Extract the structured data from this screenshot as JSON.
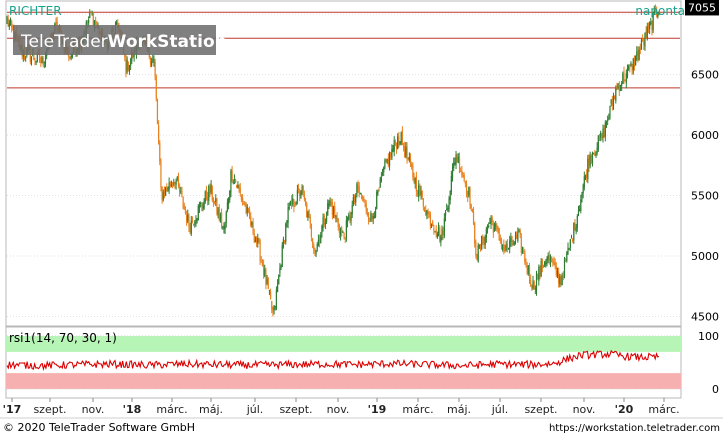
{
  "header": {
    "symbol": "RICHTER",
    "interval": "naponta",
    "watermark_trade": "TeleTrader",
    "watermark_ws": "WorkStation",
    "last_price": "7055"
  },
  "footer": {
    "copyright": "© 2020 TeleTrader Software GmbH",
    "url": "https://workstation.teletrader.com"
  },
  "colors": {
    "up": "#2e7d32",
    "down": "#e8821f",
    "hline": "#c0392b",
    "rsi": "#dd0000",
    "rsi_over": "#b6f5b6",
    "rsi_under": "#f7b0b0"
  },
  "chart_data": [
    {
      "type": "candlestick",
      "y_ticks": [
        4500,
        5000,
        5500,
        6000,
        6500,
        7000
      ],
      "ylim": [
        4430,
        7100
      ],
      "grid": true,
      "horizontal_lines": [
        7015,
        6800,
        6390
      ],
      "last_value": 7055,
      "x_labels": [
        "'17",
        "szept.",
        "nov.",
        "'18",
        "márc.",
        "máj.",
        "júl.",
        "szept.",
        "nov.",
        "'19",
        "márc.",
        "máj.",
        "júl.",
        "szept.",
        "nov.",
        "'20",
        "márc."
      ],
      "price_path": [
        [
          0,
          6950
        ],
        [
          2,
          6700
        ],
        [
          5,
          6600
        ],
        [
          7,
          6900
        ],
        [
          9,
          6650
        ],
        [
          11,
          6850
        ],
        [
          12,
          7000
        ],
        [
          14,
          6750
        ],
        [
          16,
          6900
        ],
        [
          17,
          6550
        ],
        [
          19,
          6800
        ],
        [
          21,
          6600
        ],
        [
          22,
          5500
        ],
        [
          24,
          5650
        ],
        [
          26,
          5250
        ],
        [
          29,
          5550
        ],
        [
          31,
          5200
        ],
        [
          32,
          5700
        ],
        [
          34,
          5400
        ],
        [
          36,
          5050
        ],
        [
          38,
          4500
        ],
        [
          40,
          5350
        ],
        [
          42,
          5550
        ],
        [
          44,
          5050
        ],
        [
          46,
          5450
        ],
        [
          48,
          5150
        ],
        [
          50,
          5550
        ],
        [
          52,
          5300
        ],
        [
          54,
          5750
        ],
        [
          56,
          6000
        ],
        [
          58,
          5650
        ],
        [
          60,
          5350
        ],
        [
          62,
          5150
        ],
        [
          64,
          5850
        ],
        [
          66,
          5500
        ],
        [
          67,
          5000
        ],
        [
          69,
          5300
        ],
        [
          71,
          5050
        ],
        [
          73,
          5150
        ],
        [
          75,
          4750
        ],
        [
          77,
          5000
        ],
        [
          79,
          4800
        ],
        [
          81,
          5250
        ],
        [
          83,
          5800
        ],
        [
          85,
          6000
        ],
        [
          87,
          6400
        ],
        [
          89,
          6550
        ],
        [
          91,
          6800
        ],
        [
          93,
          7055
        ]
      ]
    },
    {
      "type": "line",
      "title": "rsi1(14, 70, 30, 1)",
      "y_ticks": [
        0,
        100
      ],
      "ylim": [
        -15,
        115
      ],
      "overbought": 70,
      "oversold": 30,
      "rsi_path": [
        [
          0,
          46
        ],
        [
          5,
          44
        ],
        [
          10,
          46
        ],
        [
          15,
          47
        ],
        [
          20,
          45
        ],
        [
          25,
          47
        ],
        [
          30,
          46
        ],
        [
          35,
          45
        ],
        [
          40,
          46
        ],
        [
          45,
          47
        ],
        [
          50,
          46
        ],
        [
          55,
          48
        ],
        [
          60,
          46
        ],
        [
          65,
          44
        ],
        [
          70,
          47
        ],
        [
          75,
          46
        ],
        [
          78,
          48
        ],
        [
          80,
          57
        ],
        [
          82,
          64
        ],
        [
          84,
          65
        ],
        [
          86,
          66
        ],
        [
          88,
          62
        ],
        [
          90,
          60
        ],
        [
          93,
          60
        ]
      ]
    }
  ]
}
